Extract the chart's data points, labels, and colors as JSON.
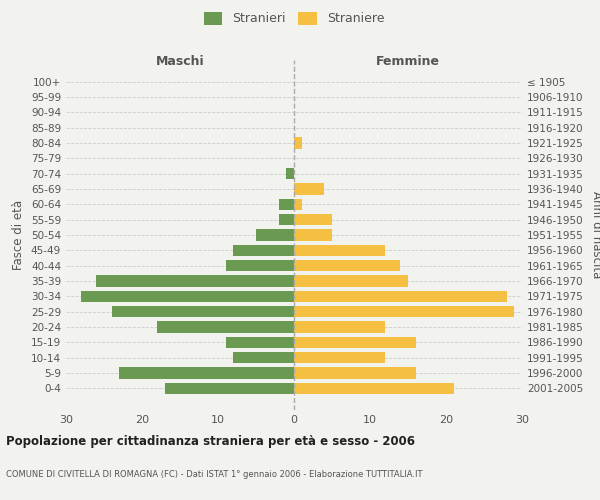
{
  "age_groups": [
    "100+",
    "95-99",
    "90-94",
    "85-89",
    "80-84",
    "75-79",
    "70-74",
    "65-69",
    "60-64",
    "55-59",
    "50-54",
    "45-49",
    "40-44",
    "35-39",
    "30-34",
    "25-29",
    "20-24",
    "15-19",
    "10-14",
    "5-9",
    "0-4"
  ],
  "birth_years": [
    "≤ 1905",
    "1906-1910",
    "1911-1915",
    "1916-1920",
    "1921-1925",
    "1926-1930",
    "1931-1935",
    "1936-1940",
    "1941-1945",
    "1946-1950",
    "1951-1955",
    "1956-1960",
    "1961-1965",
    "1966-1970",
    "1971-1975",
    "1976-1980",
    "1981-1985",
    "1986-1990",
    "1991-1995",
    "1996-2000",
    "2001-2005"
  ],
  "males": [
    0,
    0,
    0,
    0,
    0,
    0,
    1,
    0,
    2,
    2,
    5,
    8,
    9,
    26,
    28,
    24,
    18,
    9,
    8,
    23,
    17
  ],
  "females": [
    0,
    0,
    0,
    0,
    1,
    0,
    0,
    4,
    1,
    5,
    5,
    12,
    14,
    15,
    28,
    29,
    12,
    16,
    12,
    16,
    21
  ],
  "male_color": "#6a9a52",
  "female_color": "#f5bf42",
  "background_color": "#f2f2ee",
  "grid_color": "#cccccc",
  "dashed_line_color": "#aaaaaa",
  "title1": "Popolazione per cittadinanza straniera per età e sesso - 2006",
  "title2": "COMUNE DI CIVITELLA DI ROMAGNA (FC) - Dati ISTAT 1° gennaio 2006 - Elaborazione TUTTITALIA.IT",
  "xlabel_left": "Maschi",
  "xlabel_right": "Femmine",
  "ylabel_left": "Fasce di età",
  "ylabel_right": "Anni di nascita",
  "legend_males": "Stranieri",
  "legend_females": "Straniere",
  "xlim": 30,
  "text_color": "#555555",
  "title_color": "#222222"
}
